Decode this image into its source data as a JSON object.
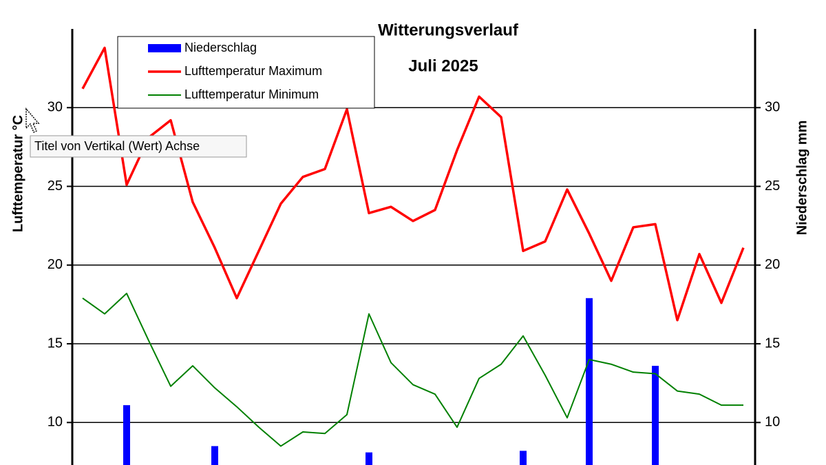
{
  "chart_data": {
    "type": "line",
    "title": "Witterungsverlauf",
    "subtitle": "Juli 2025",
    "ylabel": "Lufttemperatur °C",
    "y2label": "Niederschlag  mm",
    "tooltip": "Titel von Vertikal (Wert) Achse",
    "categories": [
      null,
      null,
      null,
      null,
      null,
      null,
      null,
      null,
      null,
      null,
      null,
      null,
      null,
      null,
      null,
      null,
      null,
      null,
      null,
      null,
      null,
      null,
      null,
      null,
      null,
      null,
      null,
      null,
      null,
      null,
      null
    ],
    "ylim": [
      7.3,
      35
    ],
    "yticks": [
      10,
      15,
      20,
      25,
      30
    ],
    "y2lim": [
      7.3,
      35
    ],
    "y2ticks": [
      10,
      15,
      20,
      25,
      30
    ],
    "grid": true,
    "legend": "top-left",
    "series": [
      {
        "name": "Niederschlag",
        "type": "bar",
        "axis": "y2",
        "color": "#0000ff",
        "values": [
          null,
          null,
          11.1,
          null,
          null,
          null,
          8.5,
          null,
          null,
          null,
          null,
          null,
          null,
          8.1,
          null,
          null,
          null,
          null,
          null,
          null,
          8.2,
          null,
          null,
          17.9,
          null,
          null,
          13.6,
          null,
          null,
          null,
          null
        ]
      },
      {
        "name": "Lufttemperatur Maximum",
        "type": "line",
        "color": "#ff0000",
        "values": [
          31.2,
          33.8,
          25.1,
          28.1,
          29.2,
          24.0,
          21.1,
          17.9,
          20.9,
          23.9,
          25.6,
          26.1,
          29.9,
          23.3,
          23.7,
          22.8,
          23.5,
          27.3,
          30.7,
          29.4,
          20.9,
          21.5,
          24.8,
          22.0,
          19.0,
          22.4,
          22.6,
          16.5,
          20.7,
          17.6,
          21.1
        ]
      },
      {
        "name": "Lufttemperatur Minimum",
        "type": "line",
        "color": "#008000",
        "values": [
          17.9,
          16.9,
          18.2,
          15.2,
          12.3,
          13.6,
          12.2,
          11.0,
          9.7,
          8.5,
          9.4,
          9.3,
          10.5,
          16.9,
          13.8,
          12.4,
          11.8,
          9.7,
          12.8,
          13.7,
          15.5,
          13.0,
          10.3,
          14.0,
          13.7,
          13.2,
          13.1,
          12.0,
          11.8,
          11.1,
          11.1
        ]
      }
    ]
  }
}
